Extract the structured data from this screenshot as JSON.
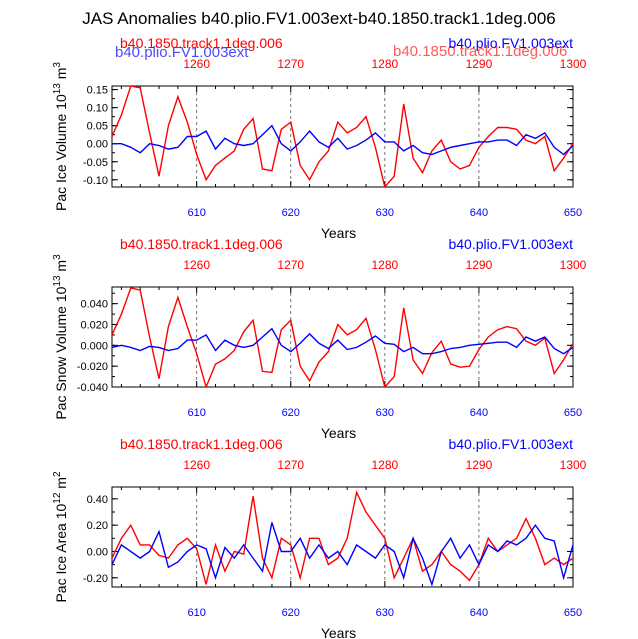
{
  "title": "JAS Anomalies b40.plio.FV1.003ext-b40.1850.track1.1deg.006",
  "overlap_labels": {
    "blue": "b40.plio.FV1.003ext",
    "red": "b40.1850.track1.1deg.006"
  },
  "colors": {
    "red": "#ff0000",
    "blue": "#0000ff"
  },
  "chart_data": [
    {
      "type": "line",
      "ylabel": "Pac Ice Volume 10",
      "yexp": "13",
      "yunit": "m",
      "yunitexp": "3",
      "xlabel": "Years",
      "series_labels": {
        "red": "b40.1850.track1.1deg.006",
        "blue": "b40.plio.FV1.003ext"
      },
      "xlim": [
        601,
        650
      ],
      "xticks": [
        610,
        620,
        630,
        640,
        650
      ],
      "xticks_top": [
        1260,
        1270,
        1280,
        1290,
        1300
      ],
      "ylim": [
        -0.12,
        0.16
      ],
      "yticks": [
        -0.1,
        -0.05,
        0.0,
        0.05,
        0.1,
        0.15
      ],
      "ytick_labels": [
        "-0.10",
        "-0.05",
        "0.00",
        "0.05",
        "0.10",
        "0.15"
      ],
      "x": [
        601,
        602,
        603,
        604,
        605,
        606,
        607,
        608,
        609,
        610,
        611,
        612,
        613,
        614,
        615,
        616,
        617,
        618,
        619,
        620,
        621,
        622,
        623,
        624,
        625,
        626,
        627,
        628,
        629,
        630,
        631,
        632,
        633,
        634,
        635,
        636,
        637,
        638,
        639,
        640,
        641,
        642,
        643,
        644,
        645,
        646,
        647,
        648,
        649,
        650
      ],
      "series": [
        {
          "name": "b40.1850.track1.1deg.006",
          "color": "red",
          "values": [
            0.02,
            0.08,
            0.16,
            0.155,
            0.03,
            -0.09,
            0.05,
            0.13,
            0.06,
            -0.03,
            -0.1,
            -0.06,
            -0.04,
            -0.02,
            0.04,
            0.07,
            -0.07,
            -0.075,
            0.04,
            0.06,
            -0.06,
            -0.1,
            -0.05,
            -0.02,
            0.06,
            0.03,
            0.045,
            0.075,
            -0.01,
            -0.12,
            -0.09,
            0.11,
            -0.04,
            -0.08,
            -0.02,
            0.01,
            -0.05,
            -0.07,
            -0.06,
            -0.01,
            0.02,
            0.045,
            0.045,
            0.04,
            0.01,
            0.0,
            0.02,
            -0.075,
            -0.04,
            0.0
          ]
        },
        {
          "name": "b40.plio.FV1.003ext",
          "color": "blue",
          "values": [
            0.0,
            0.0,
            -0.01,
            -0.025,
            0.0,
            -0.005,
            -0.015,
            -0.01,
            0.02,
            0.02,
            0.035,
            -0.015,
            0.015,
            0.0,
            -0.005,
            0.0,
            0.025,
            0.05,
            0.0,
            -0.02,
            0.005,
            0.035,
            0.005,
            -0.01,
            0.015,
            -0.015,
            -0.005,
            0.01,
            0.03,
            0.005,
            0.005,
            -0.02,
            -0.005,
            -0.025,
            -0.03,
            -0.02,
            -0.01,
            -0.005,
            0.0,
            0.005,
            0.005,
            0.01,
            0.01,
            -0.005,
            0.025,
            0.015,
            0.03,
            -0.01,
            -0.03,
            -0.005
          ]
        }
      ]
    },
    {
      "type": "line",
      "ylabel": "Pac Snow Volume 10",
      "yexp": "13",
      "yunit": "m",
      "yunitexp": "3",
      "xlabel": "Years",
      "series_labels": {
        "red": "b40.1850.track1.1deg.006",
        "blue": "b40.plio.FV1.003ext"
      },
      "xlim": [
        601,
        650
      ],
      "xticks": [
        610,
        620,
        630,
        640,
        650
      ],
      "xticks_top": [
        1260,
        1270,
        1280,
        1290,
        1300
      ],
      "ylim": [
        -0.04,
        0.056
      ],
      "yticks": [
        -0.04,
        -0.02,
        0.0,
        0.02,
        0.04
      ],
      "ytick_labels": [
        "-0.040",
        "-0.020",
        "0.000",
        "0.020",
        "0.040"
      ],
      "x": [
        601,
        602,
        603,
        604,
        605,
        606,
        607,
        608,
        609,
        610,
        611,
        612,
        613,
        614,
        615,
        616,
        617,
        618,
        619,
        620,
        621,
        622,
        623,
        624,
        625,
        626,
        627,
        628,
        629,
        630,
        631,
        632,
        633,
        634,
        635,
        636,
        637,
        638,
        639,
        640,
        641,
        642,
        643,
        644,
        645,
        646,
        647,
        648,
        649,
        650
      ],
      "series": [
        {
          "name": "b40.1850.track1.1deg.006",
          "color": "red",
          "values": [
            0.01,
            0.03,
            0.055,
            0.053,
            0.008,
            -0.032,
            0.018,
            0.046,
            0.018,
            -0.008,
            -0.04,
            -0.018,
            -0.013,
            -0.005,
            0.013,
            0.024,
            -0.025,
            -0.026,
            0.015,
            0.024,
            -0.02,
            -0.034,
            -0.016,
            -0.006,
            0.02,
            0.01,
            0.015,
            0.026,
            -0.004,
            -0.04,
            -0.03,
            0.036,
            -0.014,
            -0.027,
            -0.007,
            0.004,
            -0.018,
            -0.021,
            -0.02,
            -0.004,
            0.008,
            0.015,
            0.018,
            0.016,
            0.004,
            0.0,
            0.007,
            -0.027,
            -0.014,
            0.002
          ]
        },
        {
          "name": "b40.plio.FV1.003ext",
          "color": "blue",
          "values": [
            -0.002,
            0.0,
            -0.002,
            -0.005,
            -0.001,
            -0.002,
            -0.005,
            -0.003,
            0.005,
            0.005,
            0.01,
            -0.005,
            0.005,
            0.0,
            -0.002,
            0.0,
            0.008,
            0.016,
            0.0,
            -0.006,
            0.002,
            0.011,
            0.002,
            -0.003,
            0.005,
            -0.004,
            -0.002,
            0.003,
            0.009,
            0.002,
            0.001,
            -0.006,
            -0.002,
            -0.008,
            -0.008,
            -0.006,
            -0.003,
            -0.002,
            0.0,
            0.001,
            0.002,
            0.003,
            0.003,
            -0.002,
            0.008,
            0.004,
            0.008,
            -0.003,
            -0.008,
            -0.002
          ]
        }
      ]
    },
    {
      "type": "line",
      "ylabel": "Pac Ice Area 10",
      "yexp": "12",
      "yunit": "m",
      "yunitexp": "2",
      "xlabel": "Years",
      "series_labels": {
        "red": "b40.1850.track1.1deg.006",
        "blue": "b40.plio.FV1.003ext"
      },
      "xlim": [
        601,
        650
      ],
      "xticks": [
        610,
        620,
        630,
        640,
        650
      ],
      "xticks_top": [
        1260,
        1270,
        1280,
        1290,
        1300
      ],
      "ylim": [
        -0.27,
        0.49
      ],
      "yticks": [
        -0.2,
        0.0,
        0.2,
        0.4
      ],
      "ytick_labels": [
        "-0.20",
        "0.00",
        "0.20",
        "0.40"
      ],
      "x": [
        601,
        602,
        603,
        604,
        605,
        606,
        607,
        608,
        609,
        610,
        611,
        612,
        613,
        614,
        615,
        616,
        617,
        618,
        619,
        620,
        621,
        622,
        623,
        624,
        625,
        626,
        627,
        628,
        629,
        630,
        631,
        632,
        633,
        634,
        635,
        636,
        637,
        638,
        639,
        640,
        641,
        642,
        643,
        644,
        645,
        646,
        647,
        648,
        649,
        650
      ],
      "series": [
        {
          "name": "b40.1850.track1.1deg.006",
          "color": "red",
          "values": [
            -0.05,
            0.1,
            0.2,
            0.05,
            0.05,
            -0.03,
            -0.05,
            0.05,
            0.1,
            0.02,
            -0.25,
            0.05,
            -0.15,
            0.0,
            -0.02,
            0.42,
            -0.05,
            -0.2,
            0.1,
            0.05,
            -0.2,
            0.1,
            0.1,
            -0.1,
            -0.05,
            0.1,
            0.45,
            0.3,
            0.2,
            0.1,
            -0.2,
            -0.05,
            0.1,
            -0.15,
            -0.1,
            0.0,
            -0.1,
            -0.15,
            -0.22,
            -0.1,
            0.1,
            0.0,
            0.05,
            0.1,
            0.25,
            0.1,
            -0.1,
            -0.05,
            -0.1,
            -0.05
          ]
        },
        {
          "name": "b40.plio.FV1.003ext",
          "color": "blue",
          "values": [
            -0.1,
            0.05,
            0.0,
            -0.05,
            0.0,
            0.15,
            -0.12,
            -0.08,
            0.0,
            0.05,
            0.02,
            -0.2,
            0.03,
            -0.05,
            0.05,
            -0.05,
            -0.15,
            0.22,
            0.0,
            0.0,
            0.1,
            -0.05,
            0.05,
            -0.05,
            0.0,
            -0.1,
            0.05,
            0.0,
            -0.05,
            0.05,
            0.0,
            -0.2,
            0.1,
            -0.05,
            -0.25,
            0.0,
            0.1,
            -0.05,
            0.05,
            -0.1,
            0.05,
            0.0,
            0.08,
            0.05,
            0.1,
            0.2,
            0.1,
            0.08,
            -0.2,
            0.05
          ]
        }
      ]
    }
  ]
}
